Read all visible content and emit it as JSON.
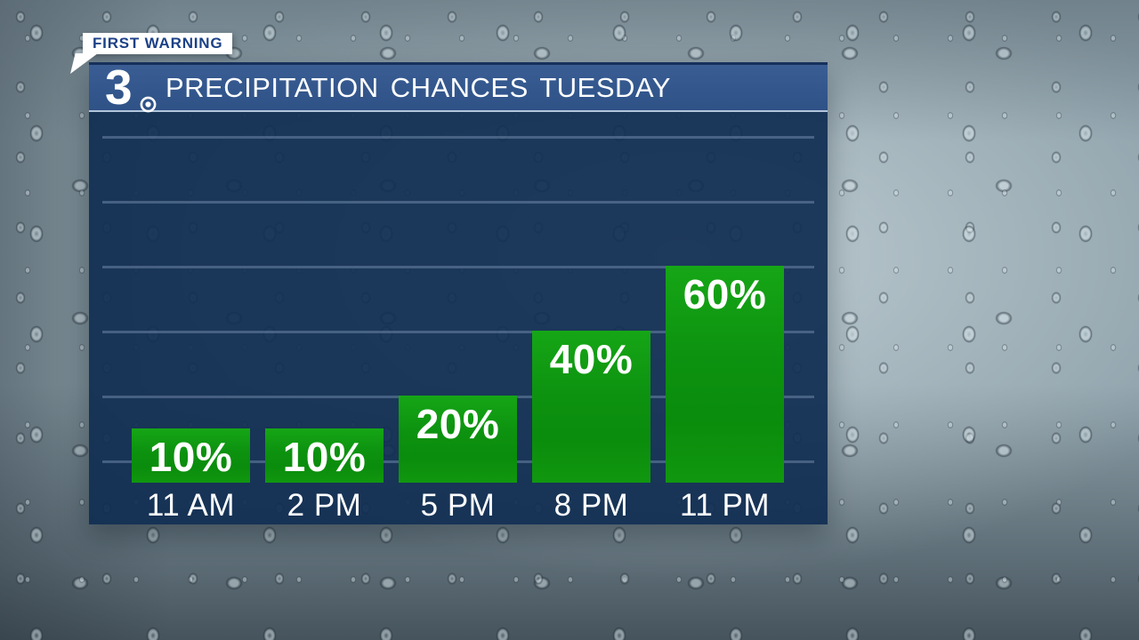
{
  "badge": {
    "label": "FIRST WARNING"
  },
  "header": {
    "station_logo_number": "3",
    "network_icon": "cbs-eye-icon",
    "title": "PRECIPITATION CHANCES TUESDAY"
  },
  "chart_data": {
    "type": "bar",
    "title": "PRECIPITATION CHANCES TUESDAY",
    "categories": [
      "11 AM",
      "2 PM",
      "5 PM",
      "8 PM",
      "11 PM"
    ],
    "values": [
      10,
      10,
      20,
      40,
      60
    ],
    "value_labels": [
      "10%",
      "10%",
      "20%",
      "40%",
      "60%"
    ],
    "unit": "%",
    "ylim": [
      0,
      100
    ],
    "gridline_step": 20,
    "grid": true,
    "legend": false,
    "xlabel": "",
    "ylabel": ""
  },
  "colors": {
    "bar_green_top": "#16a616",
    "bar_green_bottom": "#0a8c0c",
    "header_blue": "#33578d",
    "panel_navy": "#102d52",
    "gridline": "#89a2c2",
    "badge_background": "#ffffff",
    "badge_text": "#1c4187",
    "label_text": "#ffffff"
  }
}
